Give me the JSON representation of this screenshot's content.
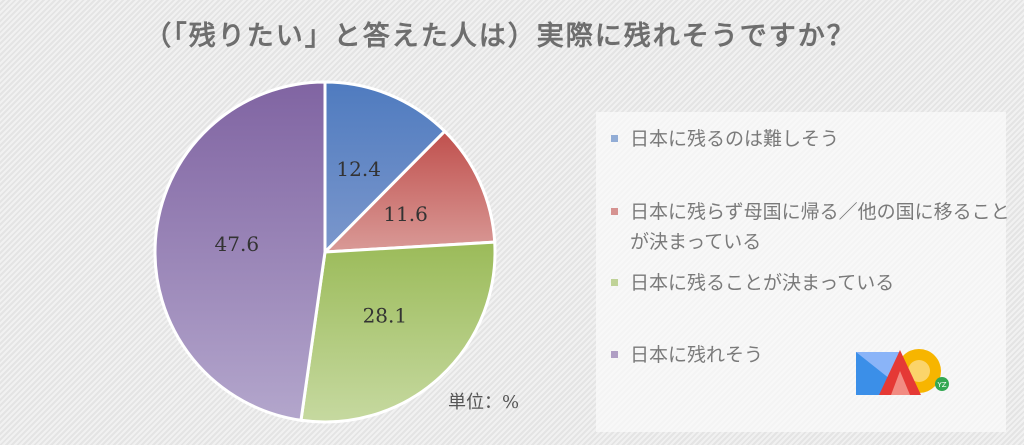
{
  "chart_data": {
    "type": "pie",
    "title": "（「残りたい」と答えた人は）実際に残れそうですか？",
    "unit_label": "単位：%",
    "start_angle": "top",
    "direction": "clockwise",
    "legend_position": "right",
    "slices": [
      {
        "name": "日本に残るのは難しそう",
        "value": 12.4,
        "label": "12.4",
        "color": "#7b97cc",
        "color_dark": "#4f7bbf"
      },
      {
        "name": "日本に残らず母国に帰る／他の国に移ることが決まっている",
        "value": 11.6,
        "label": "11.6",
        "color": "#d99a97",
        "color_dark": "#c0504d"
      },
      {
        "name": "日本に残ることが決まっている",
        "value": 28.1,
        "label": "28.1",
        "color": "#c6d9a0",
        "color_dark": "#9bbb59"
      },
      {
        "name": "日本に残れそう",
        "value": 47.6,
        "label": "47.6",
        "color": "#b3a6cc",
        "color_dark": "#8064a2"
      }
    ]
  },
  "logo": {
    "text": "MAO",
    "badge": "YZ"
  }
}
